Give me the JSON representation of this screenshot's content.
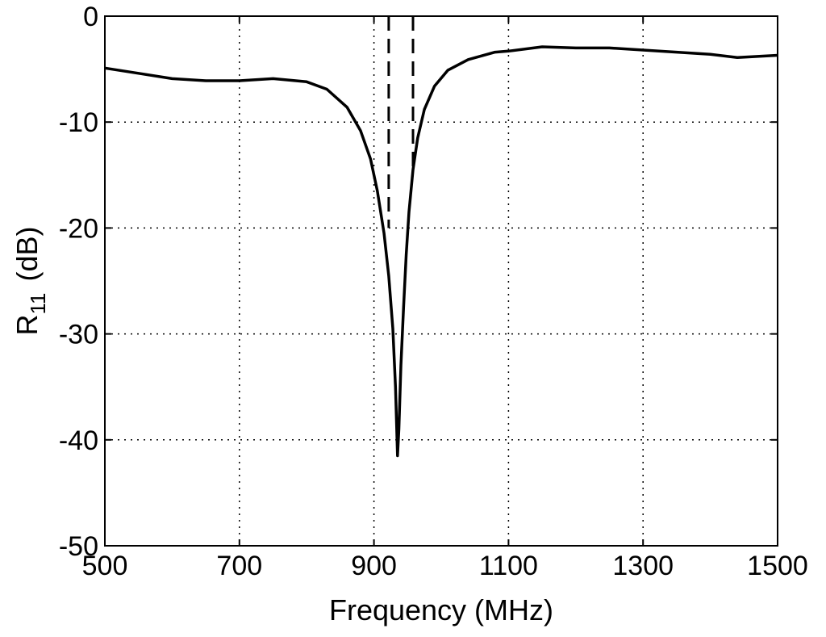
{
  "chart_data": {
    "type": "line",
    "title": "",
    "xlabel": "Frequency (MHz)",
    "ylabel": {
      "main": "R",
      "sub": "11",
      "unit": "(dB)"
    },
    "xlim": [
      500,
      1500
    ],
    "ylim": [
      -50,
      0
    ],
    "xticks": [
      500,
      700,
      900,
      1100,
      1300,
      1500
    ],
    "yticks": [
      0,
      -10,
      -20,
      -30,
      -40,
      -50
    ],
    "grid": true,
    "series": [
      {
        "style": "solid",
        "x": [
          500,
          550,
          600,
          650,
          700,
          750,
          800,
          830,
          860,
          880,
          895,
          905,
          915,
          922,
          928,
          932,
          935,
          937,
          940,
          944,
          948,
          952,
          958,
          965,
          975,
          990,
          1010,
          1040,
          1080,
          1100,
          1150,
          1200,
          1250,
          1300,
          1350,
          1400,
          1440,
          1470,
          1500
        ],
        "y": [
          -4.9,
          -5.4,
          -5.9,
          -6.1,
          -6.1,
          -5.9,
          -6.2,
          -6.9,
          -8.6,
          -10.8,
          -13.5,
          -16.5,
          -20.5,
          -24.5,
          -29.5,
          -35,
          -41.5,
          -39,
          -33,
          -27.5,
          -22.5,
          -18.5,
          -14.5,
          -11.5,
          -8.8,
          -6.6,
          -5.1,
          -4.1,
          -3.4,
          -3.3,
          -2.9,
          -3.0,
          -3.0,
          -3.2,
          -3.4,
          -3.6,
          -3.9,
          -3.8,
          -3.7
        ]
      },
      {
        "style": "dashed",
        "x": [
          922,
          922
        ],
        "y": [
          0,
          -20
        ]
      },
      {
        "style": "dashed",
        "x": [
          958,
          958
        ],
        "y": [
          0,
          -14.5
        ]
      }
    ]
  }
}
